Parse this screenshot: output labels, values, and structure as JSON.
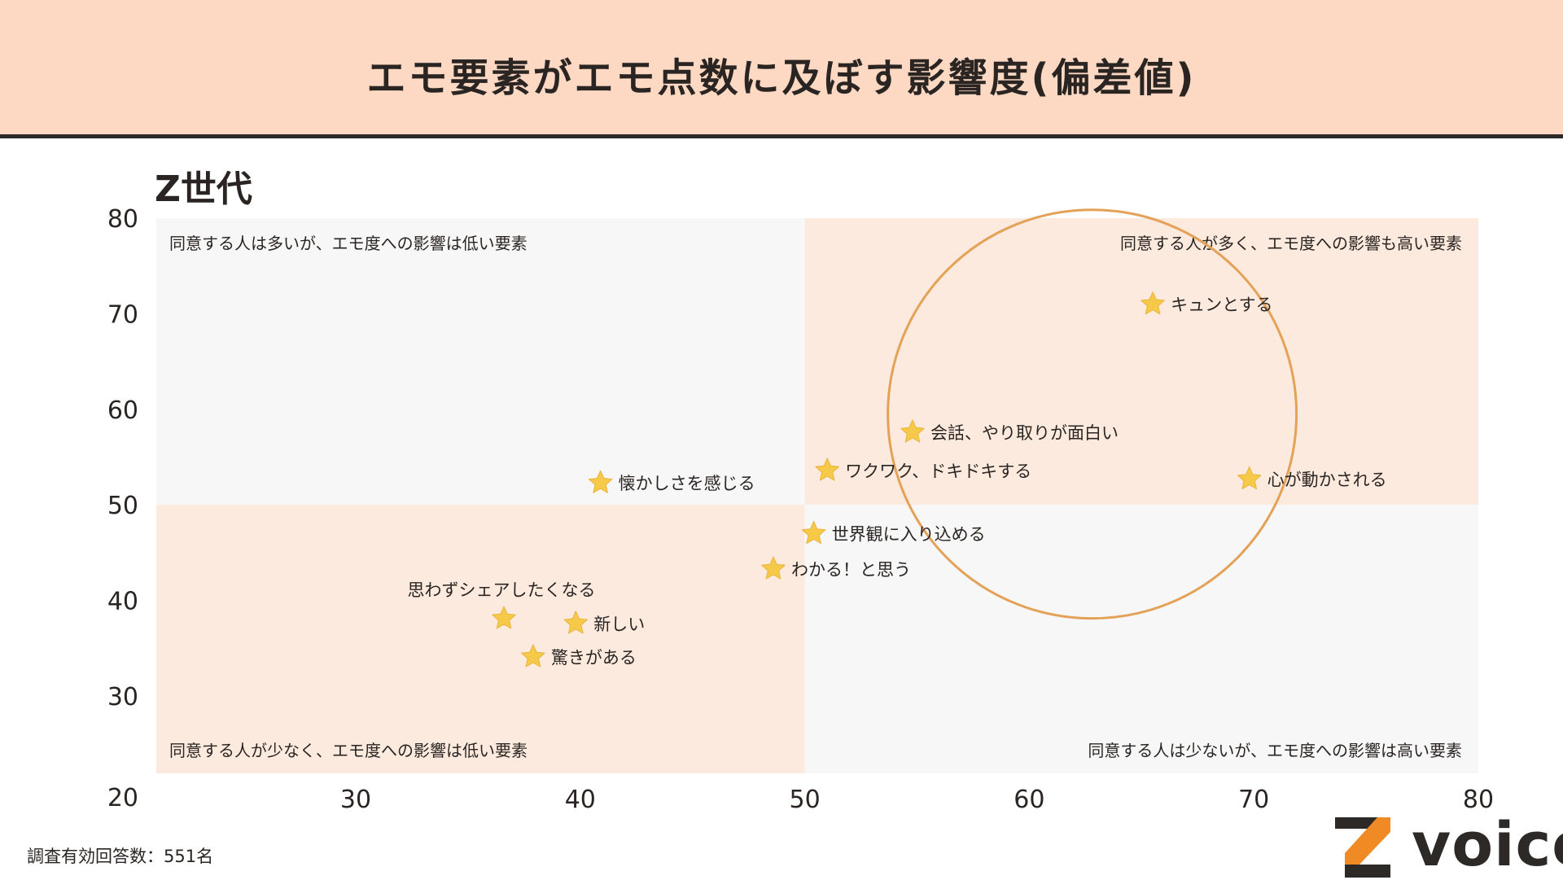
{
  "header": {
    "title": "エモ要素がエモ点数に及ぼす影響度(偏差値)"
  },
  "subtitle": "Z世代",
  "footnote": "調査有効回答数：551名",
  "logo": {
    "text": "voice",
    "icon": "z-logo-icon"
  },
  "colors": {
    "header_bg": "#fdd8c3",
    "quadrant_orange": "#fdeade",
    "quadrant_gray": "#f7f7f7",
    "star": "#f7c948",
    "circle": "#e3a257",
    "text": "#2a2522"
  },
  "chart_data": {
    "type": "scatter",
    "title": "エモ要素がエモ点数に及ぼす影響度(偏差値)",
    "subtitle": "Z世代",
    "xlim": [
      20,
      80
    ],
    "ylim": [
      20,
      80
    ],
    "x_ticks": [
      30,
      40,
      50,
      60,
      70,
      80
    ],
    "y_ticks": [
      30,
      40,
      50,
      60,
      70,
      80
    ],
    "x_tick_labels": [
      "30",
      "40",
      "50",
      "60",
      "70",
      "80"
    ],
    "y_tick_labels": [
      "30",
      "40",
      "50",
      "60",
      "70",
      "80"
    ],
    "origin_label": "20",
    "grid": false,
    "quadrants": {
      "top_left": "同意する人は多いが、エモ度への影響は低い要素",
      "top_right": "同意する人が多く、エモ度への影響も高い要素",
      "bottom_left": "同意する人が少なく、エモ度への影響は低い要素",
      "bottom_right": "同意する人は少ないが、エモ度への影響は高い要素"
    },
    "highlight_circle": {
      "cx": 62.8,
      "cy": 59.5,
      "r": 9.1
    },
    "points": [
      {
        "label": "キュンとする",
        "x": 65.5,
        "y": 71.0,
        "label_pos": "right"
      },
      {
        "label": "会話、やり取りが面白い",
        "x": 54.8,
        "y": 57.6,
        "label_pos": "right"
      },
      {
        "label": "ワクワク、ドキドキする",
        "x": 51.0,
        "y": 53.6,
        "label_pos": "right"
      },
      {
        "label": "心が動かされる",
        "x": 69.8,
        "y": 52.7,
        "label_pos": "right"
      },
      {
        "label": "懐かしさを感じる",
        "x": 40.9,
        "y": 52.3,
        "label_pos": "right"
      },
      {
        "label": "世界観に入り込める",
        "x": 50.4,
        "y": 47.0,
        "label_pos": "right"
      },
      {
        "label": "わかる！と思う",
        "x": 48.6,
        "y": 43.3,
        "label_pos": "right"
      },
      {
        "label": "思わずシェアしたくなる",
        "x": 36.6,
        "y": 38.1,
        "label_pos": "above"
      },
      {
        "label": "新しい",
        "x": 39.8,
        "y": 37.6,
        "label_pos": "right"
      },
      {
        "label": "驚きがある",
        "x": 37.9,
        "y": 34.1,
        "label_pos": "right"
      }
    ]
  }
}
